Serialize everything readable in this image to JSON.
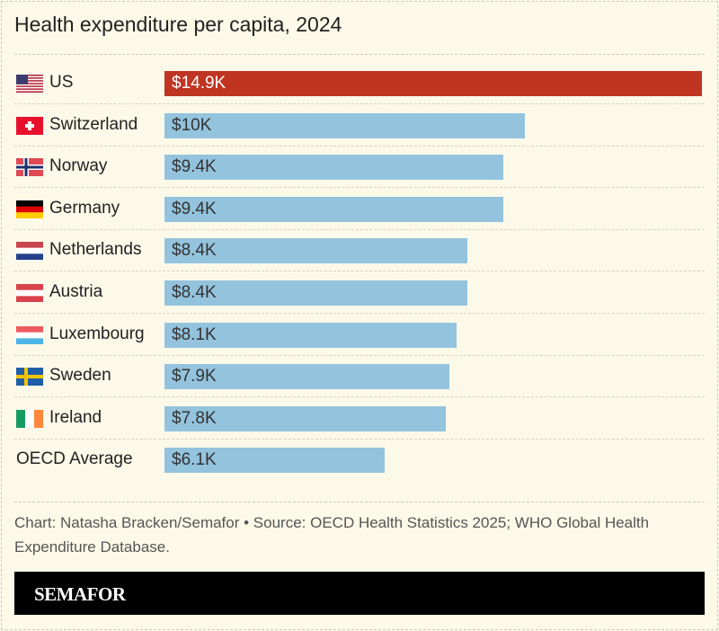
{
  "title": "Health expenditure per capita, 2024",
  "chart_data": {
    "type": "bar",
    "orientation": "horizontal",
    "title": "Health expenditure per capita, 2024",
    "unit": "USD thousands",
    "categories": [
      "US",
      "Switzerland",
      "Norway",
      "Germany",
      "Netherlands",
      "Austria",
      "Luxembourg",
      "Sweden",
      "Ireland",
      "OECD Average"
    ],
    "values": [
      14.9,
      10,
      9.4,
      9.4,
      8.4,
      8.4,
      8.1,
      7.9,
      7.8,
      6.1
    ],
    "labels": [
      "$14.9K",
      "$10K",
      "$9.4K",
      "$9.4K",
      "$8.4K",
      "$8.4K",
      "$8.1K",
      "$7.9K",
      "$7.8K",
      "$6.1K"
    ],
    "flags": [
      "us-flag-icon",
      "switzerland-flag-icon",
      "norway-flag-icon",
      "germany-flag-icon",
      "netherlands-flag-icon",
      "austria-flag-icon",
      "luxembourg-flag-icon",
      "sweden-flag-icon",
      "ireland-flag-icon",
      ""
    ],
    "highlight": "US",
    "colors": {
      "highlight": "#c03422",
      "default": "#93c3dd",
      "background": "#fcf9e9"
    }
  },
  "footer": {
    "source": "Chart: Natasha Bracken/Semafor • Source: OECD Health Statistics 2025; WHO Global Health Expenditure Database.",
    "brand": "SEMAFOR"
  }
}
